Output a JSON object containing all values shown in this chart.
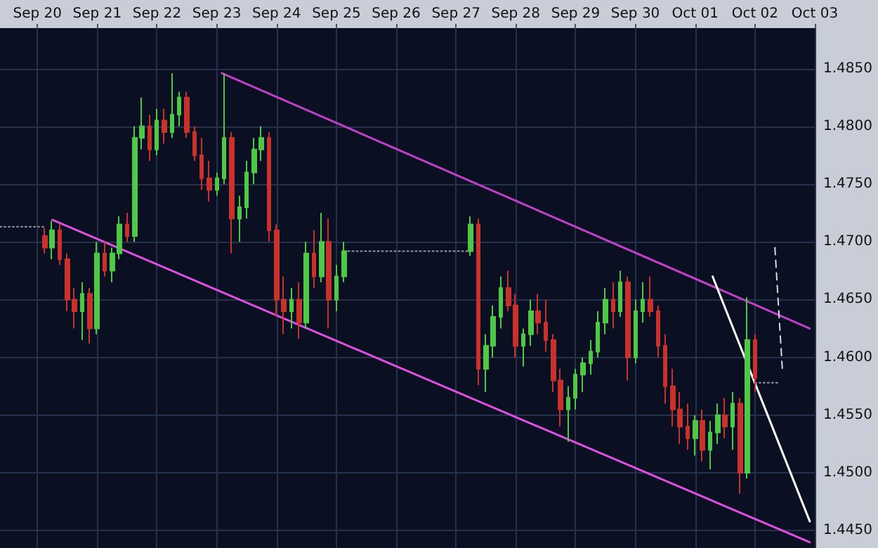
{
  "chart_data": {
    "type": "candlestick",
    "x": [
      "--09-20T15:00",
      "--09-20T18:00",
      "--09-20T21:00",
      "--09-21T00:00",
      "--09-21T03:00",
      "--09-21T06:00",
      "--09-21T09:00",
      "--09-21T12:00",
      "--09-21T15:00",
      "--09-21T18:00",
      "--09-21T21:00",
      "--09-22T00:00",
      "--09-22T03:00",
      "--09-22T06:00",
      "--09-22T09:00",
      "--09-22T12:00",
      "--09-22T15:00",
      "--09-22T18:00",
      "--09-22T21:00",
      "--09-23T00:00",
      "--09-23T03:00",
      "--09-23T06:00",
      "--09-23T09:00",
      "--09-23T12:00",
      "--09-23T15:00",
      "--09-23T18:00",
      "--09-23T21:00",
      "--09-24T00:00",
      "--09-24T03:00",
      "--09-24T06:00",
      "--09-24T09:00",
      "--09-24T12:00",
      "--09-24T15:00",
      "--09-24T18:00",
      "--09-24T21:00",
      "--09-25T00:00",
      "--09-25T03:00",
      "--09-25T06:00",
      "--09-25T09:00",
      "--09-25T12:00",
      "--09-25T15:00",
      "--09-27T18:00",
      "--09-27T21:00",
      "--09-28T00:00",
      "--09-28T03:00",
      "--09-28T06:00",
      "--09-28T09:00",
      "--09-28T12:00",
      "--09-28T15:00",
      "--09-28T18:00",
      "--09-28T21:00",
      "--09-29T00:00",
      "--09-29T03:00",
      "--09-29T06:00",
      "--09-29T09:00",
      "--09-29T12:00",
      "--09-29T15:00",
      "--09-29T18:00",
      "--09-29T21:00",
      "--09-30T00:00",
      "--09-30T03:00",
      "--09-30T06:00",
      "--09-30T09:00",
      "--09-30T12:00",
      "--09-30T15:00",
      "--09-30T18:00",
      "--09-30T21:00",
      "--10-01T00:00",
      "--10-01T03:00",
      "--10-01T06:00",
      "--10-01T09:00",
      "--10-01T12:00",
      "--10-01T15:00",
      "--10-01T18:00",
      "--10-01T21:00",
      "--10-02T00:00",
      "--10-02T03:00",
      "--10-02T06:00",
      "--10-02T09:00",
      "--10-02T12:00"
    ],
    "ohlc": [
      [
        1.4705,
        1.4712,
        1.469,
        1.4695
      ],
      [
        1.4695,
        1.4718,
        1.4685,
        1.471
      ],
      [
        1.471,
        1.4715,
        1.468,
        1.4685
      ],
      [
        1.4685,
        1.469,
        1.464,
        1.465
      ],
      [
        1.465,
        1.466,
        1.4625,
        1.464
      ],
      [
        1.464,
        1.4665,
        1.4615,
        1.4655
      ],
      [
        1.4655,
        1.466,
        1.4612,
        1.4625
      ],
      [
        1.4625,
        1.47,
        1.462,
        1.469
      ],
      [
        1.469,
        1.47,
        1.467,
        1.4675
      ],
      [
        1.4675,
        1.4695,
        1.4665,
        1.469
      ],
      [
        1.469,
        1.4722,
        1.4685,
        1.4715
      ],
      [
        1.4715,
        1.4725,
        1.47,
        1.4705
      ],
      [
        1.4705,
        1.48,
        1.47,
        1.479
      ],
      [
        1.479,
        1.4825,
        1.478,
        1.48
      ],
      [
        1.48,
        1.481,
        1.477,
        1.478
      ],
      [
        1.478,
        1.4815,
        1.4775,
        1.4805
      ],
      [
        1.4805,
        1.4815,
        1.4785,
        1.4795
      ],
      [
        1.4795,
        1.4846,
        1.479,
        1.481
      ],
      [
        1.481,
        1.483,
        1.48,
        1.4825
      ],
      [
        1.4825,
        1.483,
        1.479,
        1.4795
      ],
      [
        1.4795,
        1.48,
        1.477,
        1.4775
      ],
      [
        1.4775,
        1.479,
        1.4745,
        1.4755
      ],
      [
        1.4755,
        1.477,
        1.4735,
        1.4745
      ],
      [
        1.4745,
        1.476,
        1.474,
        1.4755
      ],
      [
        1.4755,
        1.4846,
        1.475,
        1.479
      ],
      [
        1.479,
        1.4795,
        1.469,
        1.472
      ],
      [
        1.472,
        1.474,
        1.47,
        1.473
      ],
      [
        1.473,
        1.477,
        1.472,
        1.476
      ],
      [
        1.476,
        1.479,
        1.475,
        1.478
      ],
      [
        1.478,
        1.48,
        1.477,
        1.479
      ],
      [
        1.479,
        1.4795,
        1.47,
        1.471
      ],
      [
        1.471,
        1.4715,
        1.4636,
        1.465
      ],
      [
        1.465,
        1.467,
        1.462,
        1.464
      ],
      [
        1.464,
        1.466,
        1.4625,
        1.465
      ],
      [
        1.465,
        1.4665,
        1.4616,
        1.463
      ],
      [
        1.463,
        1.47,
        1.4625,
        1.469
      ],
      [
        1.469,
        1.471,
        1.466,
        1.467
      ],
      [
        1.467,
        1.4725,
        1.4665,
        1.47
      ],
      [
        1.47,
        1.472,
        1.4625,
        1.465
      ],
      [
        1.465,
        1.468,
        1.464,
        1.467
      ],
      [
        1.467,
        1.47,
        1.4665,
        1.4692
      ],
      [
        1.4692,
        1.4722,
        1.4688,
        1.4715
      ],
      [
        1.4715,
        1.472,
        1.4576,
        1.459
      ],
      [
        1.459,
        1.462,
        1.457,
        1.461
      ],
      [
        1.461,
        1.4645,
        1.46,
        1.4635
      ],
      [
        1.4635,
        1.467,
        1.4625,
        1.466
      ],
      [
        1.466,
        1.4675,
        1.464,
        1.4645
      ],
      [
        1.4645,
        1.4655,
        1.46,
        1.461
      ],
      [
        1.461,
        1.4625,
        1.4592,
        1.462
      ],
      [
        1.462,
        1.465,
        1.461,
        1.464
      ],
      [
        1.464,
        1.4655,
        1.462,
        1.463
      ],
      [
        1.463,
        1.465,
        1.4605,
        1.4615
      ],
      [
        1.4615,
        1.462,
        1.457,
        1.458
      ],
      [
        1.458,
        1.459,
        1.454,
        1.4555
      ],
      [
        1.4555,
        1.4575,
        1.4527,
        1.4565
      ],
      [
        1.4565,
        1.459,
        1.4555,
        1.4585
      ],
      [
        1.4585,
        1.46,
        1.457,
        1.4595
      ],
      [
        1.4595,
        1.4615,
        1.4585,
        1.4605
      ],
      [
        1.4605,
        1.464,
        1.46,
        1.463
      ],
      [
        1.463,
        1.466,
        1.462,
        1.465
      ],
      [
        1.465,
        1.4665,
        1.4625,
        1.464
      ],
      [
        1.464,
        1.4675,
        1.4635,
        1.4665
      ],
      [
        1.4665,
        1.467,
        1.458,
        1.46
      ],
      [
        1.46,
        1.465,
        1.4595,
        1.464
      ],
      [
        1.464,
        1.4665,
        1.463,
        1.465
      ],
      [
        1.465,
        1.467,
        1.4635,
        1.464
      ],
      [
        1.464,
        1.4645,
        1.46,
        1.461
      ],
      [
        1.461,
        1.462,
        1.456,
        1.4575
      ],
      [
        1.4575,
        1.459,
        1.454,
        1.4555
      ],
      [
        1.4555,
        1.457,
        1.4525,
        1.454
      ],
      [
        1.454,
        1.456,
        1.452,
        1.453
      ],
      [
        1.453,
        1.455,
        1.4515,
        1.4545
      ],
      [
        1.4545,
        1.4555,
        1.451,
        1.452
      ],
      [
        1.452,
        1.4545,
        1.4503,
        1.4535
      ],
      [
        1.4535,
        1.456,
        1.4525,
        1.455
      ],
      [
        1.455,
        1.4565,
        1.453,
        1.454
      ],
      [
        1.454,
        1.457,
        1.452,
        1.456
      ],
      [
        1.456,
        1.4565,
        1.4482,
        1.45
      ],
      [
        1.45,
        1.4652,
        1.4495,
        1.4615
      ],
      [
        1.4615,
        1.462,
        1.457,
        1.4582
      ]
    ],
    "colors": [
      "#c8322c",
      "#4fc84a",
      "#c8322c",
      "#c8322c",
      "#c8322c",
      "#4fc84a",
      "#c8322c",
      "#4fc84a",
      "#c8322c",
      "#4fc84a",
      "#4fc84a",
      "#c8322c",
      "#4fc84a",
      "#4fc84a",
      "#c8322c",
      "#4fc84a",
      "#c8322c",
      "#4fc84a",
      "#4fc84a",
      "#c8322c",
      "#c8322c",
      "#c8322c",
      "#c8322c",
      "#4fc84a",
      "#4fc84a",
      "#c8322c",
      "#4fc84a",
      "#4fc84a",
      "#4fc84a",
      "#4fc84a",
      "#c8322c",
      "#c8322c",
      "#c8322c",
      "#4fc84a",
      "#c8322c",
      "#4fc84a",
      "#c8322c",
      "#4fc84a",
      "#c8322c",
      "#4fc84a",
      "#4fc84a",
      "#4fc84a",
      "#c8322c",
      "#4fc84a",
      "#4fc84a",
      "#4fc84a",
      "#c8322c",
      "#c8322c",
      "#4fc84a",
      "#4fc84a",
      "#c8322c",
      "#c8322c",
      "#c8322c",
      "#c8322c",
      "#4fc84a",
      "#4fc84a",
      "#4fc84a",
      "#4fc84a",
      "#4fc84a",
      "#4fc84a",
      "#c8322c",
      "#4fc84a",
      "#c8322c",
      "#4fc84a",
      "#4fc84a",
      "#c8322c",
      "#c8322c",
      "#c8322c",
      "#c8322c",
      "#c8322c",
      "#c8322c",
      "#4fc84a",
      "#c8322c",
      "#4fc84a",
      "#4fc84a",
      "#c8322c",
      "#4fc84a",
      "#c8322c",
      "#4fc84a",
      "#c8322c"
    ],
    "series": [
      {
        "type": "line",
        "color": "#e050e0",
        "line_style": "solid",
        "x": [
          "--09-20T18:00",
          "--10-03T10:00"
        ],
        "values": [
          1.4719,
          1.444
        ]
      },
      {
        "type": "line",
        "color": "#c040c8",
        "line_style": "solid",
        "x": [
          "--09-23T14:00",
          "--10-03T10:00"
        ],
        "values": [
          1.4846,
          1.4625
        ]
      },
      {
        "type": "line",
        "color": "#ffffff",
        "line_style": "solid",
        "x": [
          "--10-01T19:00",
          "--10-03T10:00"
        ],
        "values": [
          1.467,
          1.4458
        ]
      },
      {
        "type": "line",
        "color": "#d8d8e0",
        "line_style": "dashed",
        "x": [
          "--10-02T20:00",
          "--10-02T23:00"
        ],
        "values": [
          1.4695,
          1.4589
        ]
      },
      {
        "type": "line",
        "color": "#9a9aa8",
        "line_style": "dotted",
        "x": [
          "--09-19T21:00",
          "--09-20T15:00"
        ],
        "values": [
          1.4713,
          1.4713
        ]
      },
      {
        "type": "line",
        "color": "#9a9aa8",
        "line_style": "dotted",
        "x": [
          "--09-25T15:00",
          "--09-27T18:00"
        ],
        "values": [
          1.4692,
          1.4692
        ]
      },
      {
        "type": "line",
        "color": "#9a9aa8",
        "line_style": "dotted",
        "x": [
          "--10-02T12:00",
          "--10-02T22:00"
        ],
        "values": [
          1.4578,
          1.4578
        ]
      }
    ],
    "xlim": [
      "--09-19T21:00",
      "--10-03T12:00"
    ],
    "xticks": [
      {
        "value": "--09-20T12:00",
        "label": "Sep 20"
      },
      {
        "value": "--09-21T12:00",
        "label": "Sep 21"
      },
      {
        "value": "--09-22T12:00",
        "label": "Sep 22"
      },
      {
        "value": "--09-23T12:00",
        "label": "Sep 23"
      },
      {
        "value": "--09-24T12:00",
        "label": "Sep 24"
      },
      {
        "value": "--09-25T12:00",
        "label": "Sep 25"
      },
      {
        "value": "--09-26T12:00",
        "label": "Sep 26"
      },
      {
        "value": "--09-27T12:00",
        "label": "Sep 27"
      },
      {
        "value": "--09-28T12:00",
        "label": "Sep 28"
      },
      {
        "value": "--09-29T12:00",
        "label": "Sep 29"
      },
      {
        "value": "--09-30T12:00",
        "label": "Sep 30"
      },
      {
        "value": "--10-01T12:00",
        "label": "Oct 01"
      },
      {
        "value": "--10-02T12:00",
        "label": "Oct 02"
      },
      {
        "value": "--10-03T12:00",
        "label": "Oct 03"
      }
    ],
    "ylim": [
      1.4435,
      1.4885
    ],
    "yticks": [
      {
        "value": 1.445,
        "label": "1.4450"
      },
      {
        "value": 1.45,
        "label": "1.4500"
      },
      {
        "value": 1.455,
        "label": "1.4550"
      },
      {
        "value": 1.46,
        "label": "1.4600"
      },
      {
        "value": 1.465,
        "label": "1.4650"
      },
      {
        "value": 1.47,
        "label": "1.4700"
      },
      {
        "value": 1.475,
        "label": "1.4750"
      },
      {
        "value": 1.48,
        "label": "1.4800"
      },
      {
        "value": 1.485,
        "label": "1.4850"
      }
    ],
    "grid": true
  }
}
